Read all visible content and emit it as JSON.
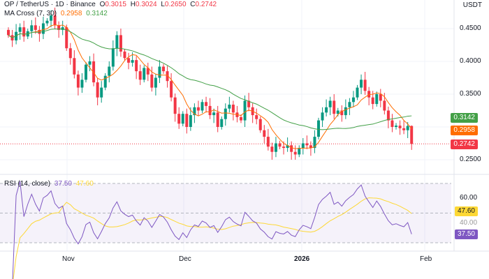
{
  "header": {
    "symbol": "OP / TetherUS · 1D · Binance",
    "o_label": "O",
    "o": "0.3015",
    "h_label": "H",
    "h": "0.3024",
    "l_label": "L",
    "l": "0.2650",
    "c_label": "C",
    "c": "0.2742",
    "currency": "USDT"
  },
  "ma": {
    "label": "MA Cross (7, 30)",
    "fast": "0.2958",
    "slow": "0.3142"
  },
  "rsi": {
    "label": "RSI (14, close)",
    "value": "37.50",
    "ma": "47.60",
    "axis_label": "60.00",
    "hidden_label": "40.00"
  },
  "price_axis": [
    "0.4500",
    "0.4000",
    "0.3500",
    "0.2500"
  ],
  "tags": {
    "slow": "0.3142",
    "fast": "0.2958",
    "last": "0.2742"
  },
  "colors": {
    "up": "#089981",
    "down": "#f23645",
    "fast": "#ff6d00",
    "slow": "#43a047",
    "rsi": "#7e57c2",
    "rsima": "#fdd835"
  },
  "chart_data": {
    "type": "candlestick",
    "title": "OP / TetherUS · 1D · Binance",
    "x_ticks": [
      "Nov",
      "Dec",
      "2026",
      "Feb"
    ],
    "ylim": [
      0.24,
      0.47
    ],
    "closes": [
      0.44,
      0.432,
      0.445,
      0.452,
      0.438,
      0.446,
      0.455,
      0.448,
      0.442,
      0.458,
      0.462,
      0.47,
      0.455,
      0.448,
      0.452,
      0.42,
      0.405,
      0.38,
      0.36,
      0.372,
      0.395,
      0.4,
      0.368,
      0.345,
      0.36,
      0.378,
      0.392,
      0.42,
      0.44,
      0.415,
      0.405,
      0.398,
      0.402,
      0.385,
      0.372,
      0.39,
      0.38,
      0.36,
      0.375,
      0.392,
      0.385,
      0.37,
      0.345,
      0.32,
      0.305,
      0.32,
      0.3,
      0.318,
      0.33,
      0.325,
      0.338,
      0.332,
      0.318,
      0.322,
      0.3,
      0.312,
      0.328,
      0.334,
      0.322,
      0.315,
      0.31,
      0.34,
      0.33,
      0.318,
      0.312,
      0.295,
      0.285,
      0.27,
      0.262,
      0.275,
      0.27,
      0.268,
      0.272,
      0.262,
      0.258,
      0.268,
      0.275,
      0.272,
      0.268,
      0.285,
      0.31,
      0.322,
      0.33,
      0.34,
      0.32,
      0.325,
      0.318,
      0.33,
      0.338,
      0.345,
      0.36,
      0.372,
      0.355,
      0.345,
      0.335,
      0.35,
      0.34,
      0.325,
      0.31,
      0.3,
      0.302,
      0.298,
      0.295,
      0.3015,
      0.2742
    ]
  }
}
